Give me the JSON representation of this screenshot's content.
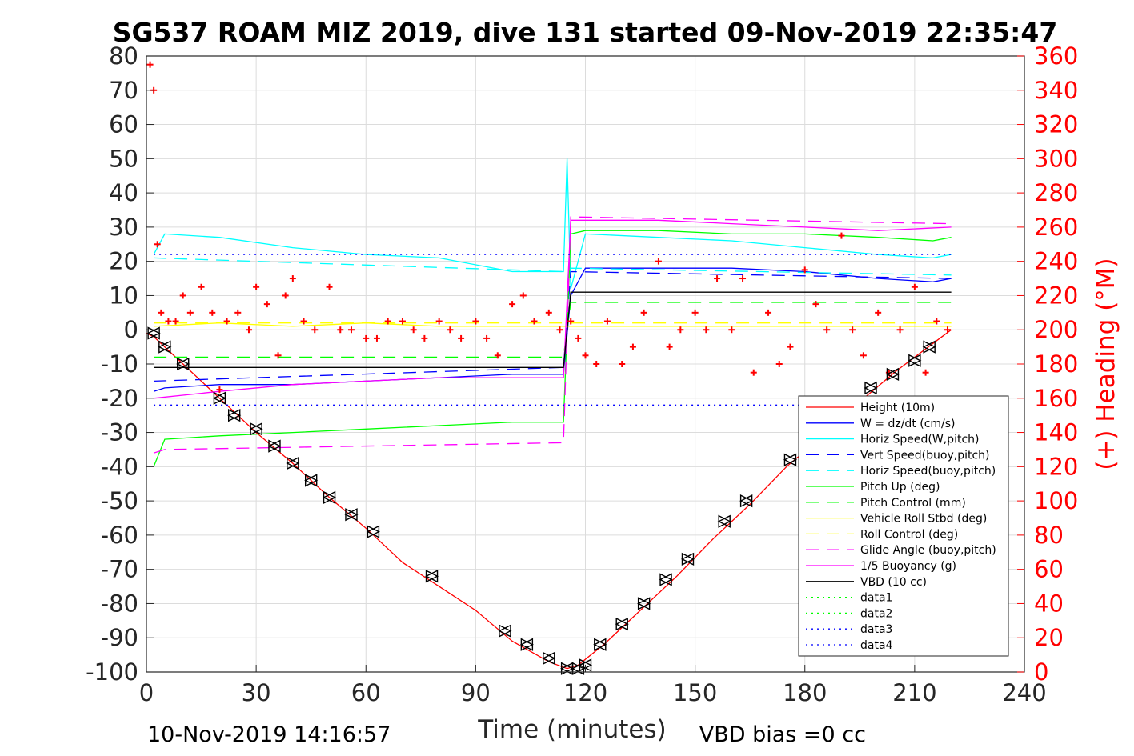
{
  "chart_data": {
    "type": "line",
    "title": "SG537 ROAM MIZ 2019, dive 131 started 09-Nov-2019 22:35:47",
    "xlabel": "Time (minutes)",
    "ylabel_right": "(+) Heading (°M)",
    "footer_left": "10-Nov-2019 14:16:57",
    "footer_right": "VBD bias =0 cc",
    "xlim": [
      0,
      240
    ],
    "ylim": [
      -100,
      80
    ],
    "ylim_right": [
      0,
      360
    ],
    "grid": true,
    "legend_position": "bottom-right",
    "x_ticks": [
      "0",
      "30",
      "60",
      "90",
      "120",
      "150",
      "180",
      "210",
      "240"
    ],
    "y_ticks": [
      "80",
      "70",
      "60",
      "50",
      "40",
      "30",
      "20",
      "10",
      "0",
      "-10",
      "-20",
      "-30",
      "-40",
      "-50",
      "-60",
      "-70",
      "-80",
      "-90",
      "-100"
    ],
    "y_ticks_right": [
      "360",
      "340",
      "320",
      "300",
      "280",
      "260",
      "240",
      "220",
      "200",
      "180",
      "160",
      "140",
      "120",
      "100",
      "80",
      "60",
      "40",
      "20",
      "0"
    ],
    "colors": {
      "height": "#ff0000",
      "w": "#0000ff",
      "horiz_speed": "#00ffff",
      "pitch": "#00ff00",
      "roll": "#ffff00",
      "glide": "#ff00ff",
      "buoyancy": "#ff00ff",
      "vbd": "#000000",
      "data3": "#0000ff",
      "heading": "#ff0000"
    },
    "series": [
      {
        "name": "Height (10m)",
        "style": "solid",
        "color": "#ff0000",
        "x": [
          0,
          2,
          10,
          20,
          30,
          40,
          50,
          60,
          70,
          80,
          90,
          100,
          110,
          115,
          118,
          125,
          135,
          145,
          155,
          165,
          175,
          185,
          195,
          205,
          215,
          220
        ],
        "y": [
          -1,
          -2,
          -10,
          -20,
          -30,
          -39,
          -49,
          -58,
          -68,
          -75,
          -82,
          -91,
          -97,
          -99,
          -98,
          -92,
          -82,
          -72,
          -61,
          -51,
          -40,
          -31,
          -21,
          -12,
          -4,
          0
        ]
      },
      {
        "name": "W = dz/dt (cm/s)",
        "style": "solid",
        "color": "#0000ff",
        "x": [
          2,
          5,
          20,
          40,
          60,
          80,
          100,
          114,
          116,
          120,
          140,
          160,
          180,
          200,
          215,
          220
        ],
        "y": [
          -18,
          -17,
          -16,
          -16,
          -15,
          -14,
          -13,
          -13,
          10,
          18,
          18,
          18,
          17,
          15,
          14,
          15
        ]
      },
      {
        "name": "Horiz Speed(W,pitch)",
        "style": "solid",
        "color": "#00ffff",
        "x": [
          2,
          5,
          20,
          40,
          60,
          80,
          100,
          114,
          115,
          116,
          120,
          140,
          160,
          180,
          200,
          215,
          220
        ],
        "y": [
          22,
          28,
          27,
          24,
          22,
          21,
          17,
          17,
          50,
          12,
          28,
          27,
          26,
          24,
          22,
          21,
          22
        ]
      },
      {
        "name": "Vert Speed(buoy,pitch)",
        "style": "dashed",
        "color": "#0000ff",
        "x": [
          2,
          114,
          116,
          220
        ],
        "y": [
          -15,
          -11,
          17,
          15
        ]
      },
      {
        "name": "Horiz Speed(buoy,pitch)",
        "style": "dashed",
        "color": "#00ffff",
        "x": [
          2,
          114,
          116,
          220
        ],
        "y": [
          21,
          17,
          18,
          16
        ]
      },
      {
        "name": "Pitch Up (deg)",
        "style": "solid",
        "color": "#00ff00",
        "x": [
          2,
          5,
          20,
          40,
          60,
          80,
          100,
          114,
          116,
          120,
          140,
          160,
          180,
          200,
          215,
          220
        ],
        "y": [
          -40,
          -32,
          -31,
          -30,
          -29,
          -28,
          -27,
          -27,
          28,
          29,
          29,
          28,
          28,
          27,
          26,
          27
        ]
      },
      {
        "name": "Pitch Control (mm)",
        "style": "dashed",
        "color": "#00ff00",
        "x": [
          2,
          114,
          116,
          220
        ],
        "y": [
          -8,
          -8,
          8,
          8
        ]
      },
      {
        "name": "Vehicle Roll Stbd (deg)",
        "style": "solid",
        "color": "#ffff00",
        "x": [
          2,
          20,
          40,
          60,
          80,
          100,
          114,
          116,
          140,
          160,
          180,
          200,
          220
        ],
        "y": [
          1,
          2,
          1,
          2,
          1,
          1,
          1,
          1,
          1,
          1,
          1,
          1,
          1
        ]
      },
      {
        "name": "Roll Control (deg)",
        "style": "dashed",
        "color": "#ffff00",
        "x": [
          2,
          220
        ],
        "y": [
          2,
          2
        ]
      },
      {
        "name": "Glide Angle (buoy,pitch)",
        "style": "dashed",
        "color": "#ff00ff",
        "x": [
          2,
          5,
          114,
          116,
          220
        ],
        "y": [
          -36,
          -35,
          -33,
          33,
          31
        ]
      },
      {
        "name": "1/5 Buoyancy (g)",
        "style": "solid",
        "color": "#ff00ff",
        "x": [
          2,
          20,
          40,
          60,
          80,
          100,
          114,
          116,
          140,
          160,
          180,
          200,
          220
        ],
        "y": [
          -20,
          -18,
          -16,
          -15,
          -14,
          -14,
          -14,
          32,
          32,
          31,
          30,
          29,
          30
        ]
      },
      {
        "name": "VBD (10 cc)",
        "style": "solid",
        "color": "#000000",
        "x": [
          2,
          114,
          116,
          220
        ],
        "y": [
          -11,
          -11,
          11,
          11
        ]
      },
      {
        "name": "data1",
        "style": "dotted",
        "color": "#00ff00",
        "x": [],
        "y": []
      },
      {
        "name": "data2",
        "style": "dotted",
        "color": "#00ff00",
        "x": [],
        "y": []
      },
      {
        "name": "data3",
        "style": "dotted",
        "color": "#0000ff",
        "x": [
          2,
          220
        ],
        "y": [
          22,
          22
        ]
      },
      {
        "name": "data4",
        "style": "dotted",
        "color": "#0000ff",
        "x": [
          2,
          220
        ],
        "y": [
          -22,
          -22
        ]
      }
    ],
    "heading": {
      "axis": "right",
      "marker": "+",
      "color": "#ff0000",
      "x": [
        1,
        2,
        3,
        4,
        6,
        8,
        10,
        12,
        15,
        18,
        20,
        22,
        25,
        28,
        30,
        33,
        36,
        38,
        40,
        43,
        46,
        50,
        53,
        56,
        60,
        63,
        66,
        70,
        73,
        76,
        80,
        83,
        86,
        90,
        93,
        96,
        100,
        103,
        106,
        110,
        113,
        116,
        118,
        120,
        123,
        126,
        130,
        133,
        136,
        140,
        143,
        146,
        150,
        153,
        156,
        160,
        163,
        166,
        170,
        173,
        176,
        180,
        183,
        186,
        190,
        193,
        196,
        200,
        203,
        206,
        210,
        213,
        216,
        219
      ],
      "y": [
        355,
        340,
        250,
        210,
        205,
        205,
        220,
        210,
        225,
        210,
        165,
        205,
        210,
        200,
        225,
        215,
        185,
        220,
        230,
        205,
        200,
        225,
        200,
        200,
        195,
        195,
        205,
        205,
        200,
        195,
        205,
        200,
        195,
        205,
        195,
        185,
        215,
        220,
        205,
        210,
        200,
        205,
        195,
        185,
        180,
        205,
        180,
        190,
        210,
        240,
        190,
        200,
        210,
        200,
        230,
        200,
        230,
        175,
        210,
        180,
        190,
        235,
        215,
        200,
        255,
        200,
        185,
        210,
        175,
        200,
        225,
        175,
        205,
        200
      ]
    },
    "markers": {
      "color": "#000000",
      "x": [
        2,
        5,
        10,
        20,
        24,
        30,
        35,
        40,
        45,
        50,
        56,
        62,
        78,
        98,
        104,
        110,
        115,
        118,
        120,
        124,
        130,
        136,
        142,
        148,
        158,
        164,
        176,
        198,
        204,
        210,
        214
      ],
      "y": [
        -1,
        -5,
        -10,
        -20,
        -25,
        -29,
        -34,
        -39,
        -44,
        -49,
        -54,
        -59,
        -72,
        -88,
        -92,
        -96,
        -99,
        -99,
        -98,
        -92,
        -86,
        -80,
        -73,
        -67,
        -56,
        -50,
        -38,
        -17,
        -13,
        -9,
        -5
      ]
    }
  }
}
